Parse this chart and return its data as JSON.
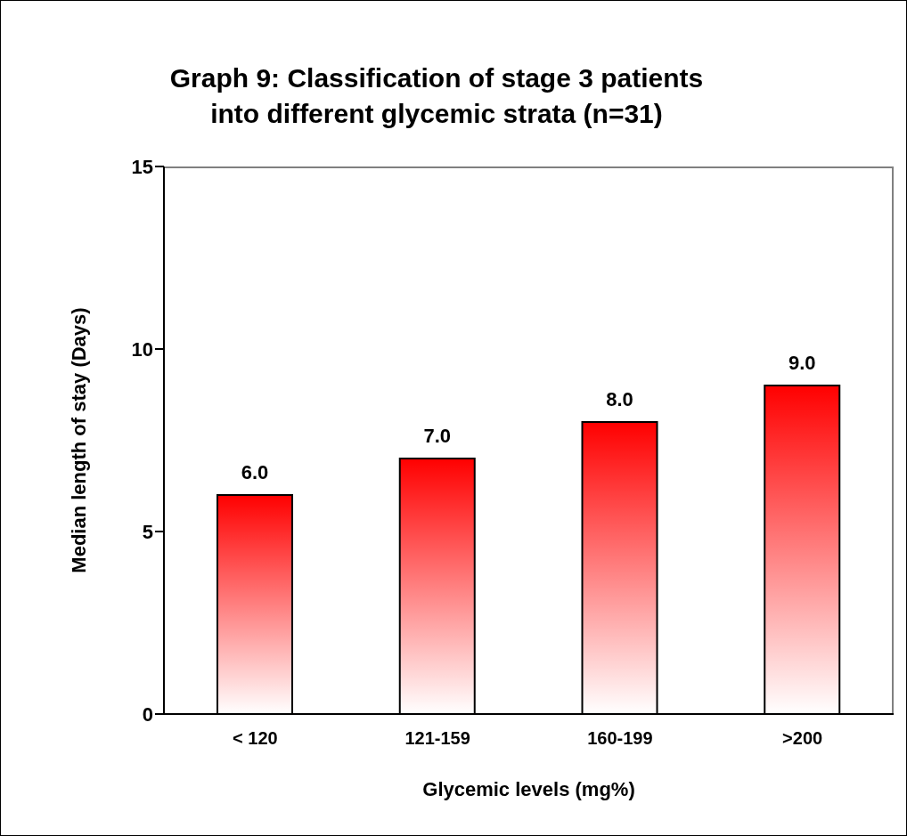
{
  "chart_data": {
    "type": "bar",
    "title": "Graph 9: Classification of stage 3 patients into different glycemic strata (n=31)",
    "xlabel": "Glycemic levels (mg%)",
    "ylabel": "Median length of stay (Days)",
    "categories": [
      "< 120",
      "121-159",
      "160-199",
      ">200"
    ],
    "values": [
      6,
      7,
      8,
      9
    ],
    "value_labels": [
      "6.0",
      "7.0",
      "8.0",
      "9.0"
    ],
    "color": "#ff0000",
    "ylim": [
      0,
      15
    ],
    "yticks": [
      0,
      5,
      10,
      15
    ],
    "grid": false,
    "legend": false
  }
}
